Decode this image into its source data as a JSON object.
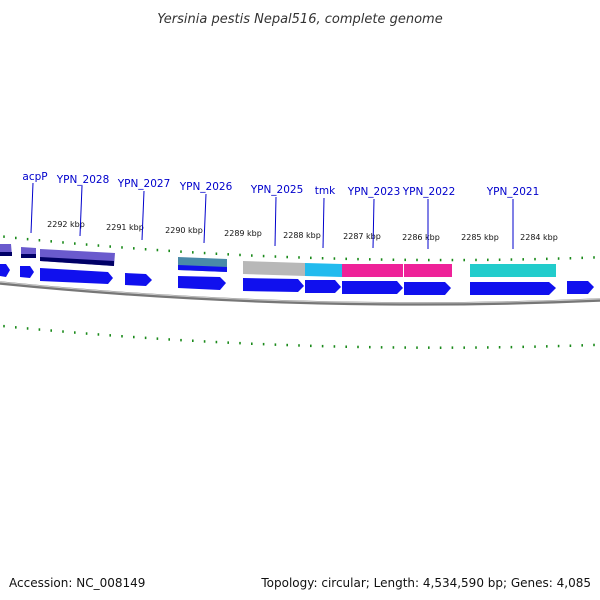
{
  "title": "Yersinia pestis Nepal516, complete genome",
  "accession": "Accession: NC_008149",
  "summary": "Topology: circular; Length: 4,534,590 bp; Genes: 4,085",
  "kbp_labels": [
    "2292 kbp",
    "2291 kbp",
    "2290 kbp",
    "2289 kbp",
    "2288 kbp",
    "2287 kbp",
    "2286 kbp",
    "2285 kbp",
    "2284 kbp"
  ],
  "gene_labels": [
    "acpP",
    "YPN_2028",
    "YPN_2027",
    "YPN_2026",
    "YPN_2025",
    "tmk",
    "YPN_2023",
    "YPN_2022",
    "YPN_2021"
  ],
  "colors": {
    "cds": "#1010ee",
    "cog_purple": "#6a5acd",
    "cog_teal": "#4a8aa8",
    "cog_gray": "#b8b8b8",
    "cog_cyan": "#22bbee",
    "cog_pink": "#ee2299",
    "cog_turquoise": "#22cccc",
    "backbone": "#8a8a8a",
    "ticks": "#1a8a1a",
    "label_line": "#0000cc"
  }
}
